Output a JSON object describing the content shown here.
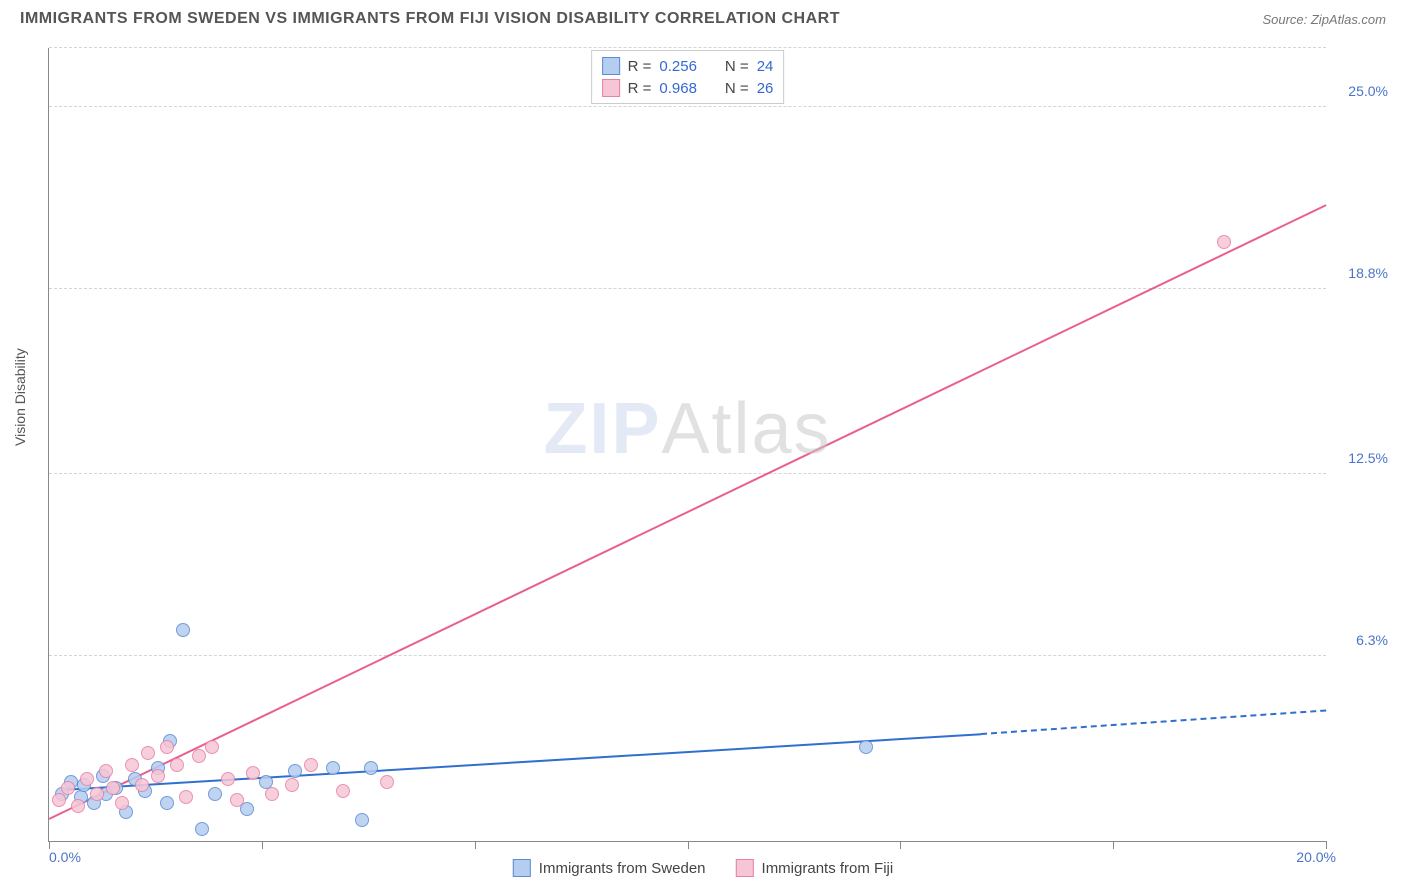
{
  "header": {
    "title": "IMMIGRANTS FROM SWEDEN VS IMMIGRANTS FROM FIJI VISION DISABILITY CORRELATION CHART",
    "source_prefix": "Source: ",
    "source_name": "ZipAtlas.com"
  },
  "watermark": {
    "bold": "ZIP",
    "light": "Atlas"
  },
  "chart": {
    "type": "scatter",
    "background_color": "#ffffff",
    "grid_color": "#d5d5d5",
    "axis_color": "#888888",
    "y_axis_title": "Vision Disability",
    "xlim": [
      0.0,
      20.0
    ],
    "ylim": [
      0.0,
      27.0
    ],
    "x_ticks": [
      0.0,
      3.33,
      6.67,
      10.0,
      13.33,
      16.67,
      20.0
    ],
    "x_tick_labels": {
      "0": "0.0%",
      "20": "20.0%"
    },
    "y_gridlines": [
      6.3,
      12.5,
      18.8,
      25.0,
      27.0
    ],
    "y_tick_labels": [
      "6.3%",
      "12.5%",
      "18.8%",
      "25.0%"
    ],
    "label_color": "#4a74c9",
    "label_fontsize": 14,
    "series": [
      {
        "name": "Immigrants from Sweden",
        "marker_fill": "#b5cdef",
        "marker_stroke": "#5b8bd4",
        "marker_size": 14,
        "line_color": "#2f6fd0",
        "line_width": 2,
        "r": "0.256",
        "n": "24",
        "trend": {
          "x1": 0.2,
          "y1": 1.7,
          "x2": 14.6,
          "y2": 3.6,
          "dash_after_x": 14.6,
          "x2_dash": 20.0,
          "y2_dash": 4.4
        },
        "points": [
          {
            "x": 0.2,
            "y": 1.6
          },
          {
            "x": 0.35,
            "y": 2.0
          },
          {
            "x": 0.5,
            "y": 1.5
          },
          {
            "x": 0.55,
            "y": 1.9
          },
          {
            "x": 0.7,
            "y": 1.3
          },
          {
            "x": 0.85,
            "y": 2.2
          },
          {
            "x": 0.9,
            "y": 1.6
          },
          {
            "x": 1.05,
            "y": 1.8
          },
          {
            "x": 1.2,
            "y": 1.0
          },
          {
            "x": 1.35,
            "y": 2.1
          },
          {
            "x": 1.5,
            "y": 1.7
          },
          {
            "x": 1.7,
            "y": 2.5
          },
          {
            "x": 1.85,
            "y": 1.3
          },
          {
            "x": 1.9,
            "y": 3.4
          },
          {
            "x": 2.1,
            "y": 7.2
          },
          {
            "x": 2.4,
            "y": 0.4
          },
          {
            "x": 2.6,
            "y": 1.6
          },
          {
            "x": 3.1,
            "y": 1.1
          },
          {
            "x": 3.4,
            "y": 2.0
          },
          {
            "x": 3.85,
            "y": 2.4
          },
          {
            "x": 4.45,
            "y": 2.5
          },
          {
            "x": 4.9,
            "y": 0.7
          },
          {
            "x": 5.05,
            "y": 2.5
          },
          {
            "x": 12.8,
            "y": 3.2
          }
        ]
      },
      {
        "name": "Immigrants from Fiji",
        "marker_fill": "#f6c6d6",
        "marker_stroke": "#e87fa4",
        "marker_size": 14,
        "line_color": "#e95f8f",
        "line_width": 2,
        "r": "0.968",
        "n": "26",
        "trend": {
          "x1": 0.0,
          "y1": 0.7,
          "x2": 20.0,
          "y2": 21.6
        },
        "points": [
          {
            "x": 0.15,
            "y": 1.4
          },
          {
            "x": 0.3,
            "y": 1.8
          },
          {
            "x": 0.45,
            "y": 1.2
          },
          {
            "x": 0.6,
            "y": 2.1
          },
          {
            "x": 0.75,
            "y": 1.6
          },
          {
            "x": 0.9,
            "y": 2.4
          },
          {
            "x": 1.0,
            "y": 1.8
          },
          {
            "x": 1.15,
            "y": 1.3
          },
          {
            "x": 1.3,
            "y": 2.6
          },
          {
            "x": 1.45,
            "y": 1.9
          },
          {
            "x": 1.55,
            "y": 3.0
          },
          {
            "x": 1.7,
            "y": 2.2
          },
          {
            "x": 1.85,
            "y": 3.2
          },
          {
            "x": 2.0,
            "y": 2.6
          },
          {
            "x": 2.15,
            "y": 1.5
          },
          {
            "x": 2.35,
            "y": 2.9
          },
          {
            "x": 2.55,
            "y": 3.2
          },
          {
            "x": 2.8,
            "y": 2.1
          },
          {
            "x": 2.95,
            "y": 1.4
          },
          {
            "x": 3.2,
            "y": 2.3
          },
          {
            "x": 3.5,
            "y": 1.6
          },
          {
            "x": 3.8,
            "y": 1.9
          },
          {
            "x": 4.1,
            "y": 2.6
          },
          {
            "x": 4.6,
            "y": 1.7
          },
          {
            "x": 5.3,
            "y": 2.0
          },
          {
            "x": 18.4,
            "y": 20.4
          }
        ]
      }
    ],
    "legend_top": {
      "r_label": "R =",
      "n_label": "N ="
    }
  }
}
